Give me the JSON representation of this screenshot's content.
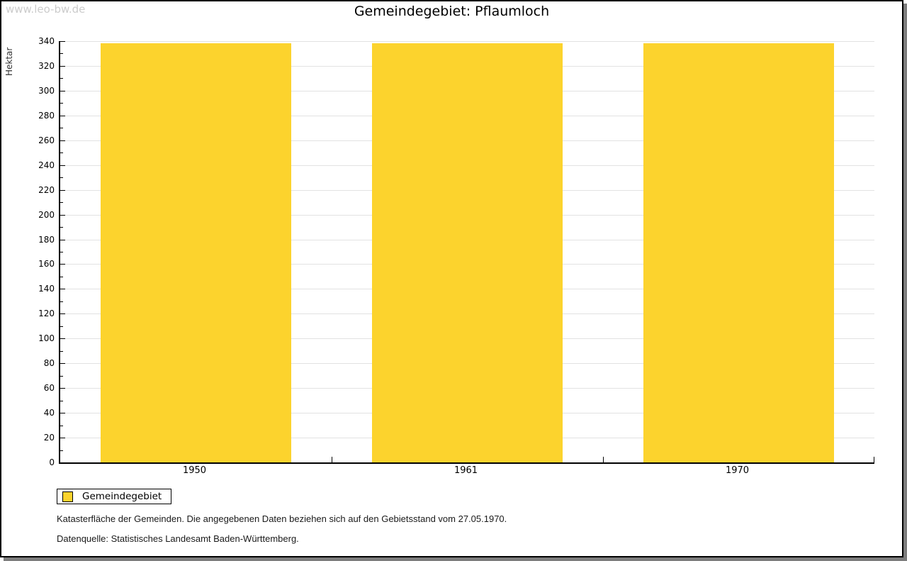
{
  "watermark": "www.leo-bw.de",
  "title": "Gemeindegebiet: Pflaumloch",
  "chart_data": {
    "type": "bar",
    "title": "Gemeindegebiet: Pflaumloch",
    "categories": [
      "1950",
      "1961",
      "1970"
    ],
    "values": [
      338,
      338,
      338
    ],
    "series": [
      {
        "name": "Gemeindegebiet",
        "values": [
          338,
          338,
          338
        ],
        "color": "#fcd32d"
      }
    ],
    "xlabel": "",
    "ylabel": "Hektar",
    "ylim": [
      0,
      340
    ],
    "ytick_interval": 20,
    "minor_tick_interval": 10,
    "grid": true,
    "legend_position": "bottom-left-outside"
  },
  "legend": {
    "items": [
      {
        "label": "Gemeindegebiet",
        "color": "#fcd32d"
      }
    ]
  },
  "footer": {
    "line1": "Katasterfläche der Gemeinden. Die angegebenen Daten beziehen sich auf den Gebietsstand vom 27.05.1970.",
    "line2": "Datenquelle: Statistisches Landesamt Baden-Württemberg."
  },
  "colors": {
    "bar": "#fcd32d",
    "grid": "#e2e2e2",
    "axis": "#000000",
    "watermark": "#cccccc",
    "frame_shadow": "#7e7e7e"
  }
}
